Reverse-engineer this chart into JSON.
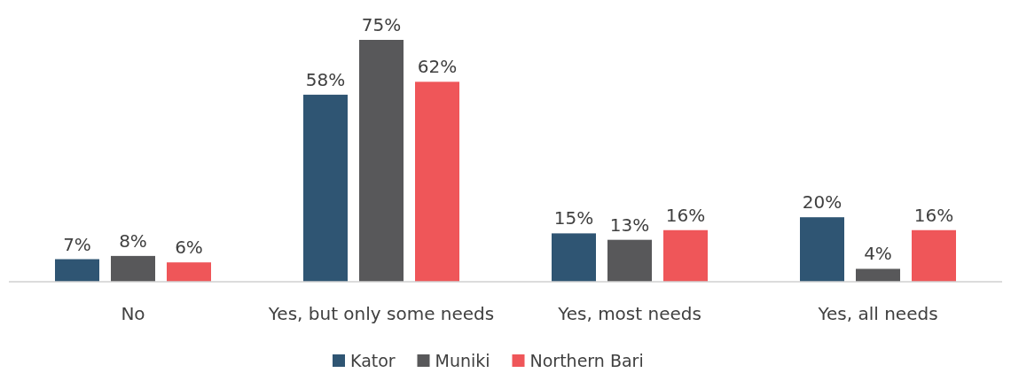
{
  "chart_data": {
    "type": "bar",
    "categories": [
      "No",
      "Yes, but only some needs",
      "Yes, most needs",
      "Yes, all needs"
    ],
    "series": [
      {
        "name": "Kator",
        "color": "#2f5573",
        "values": [
          7,
          58,
          15,
          20
        ],
        "value_labels": [
          "7%",
          "58%",
          "15%",
          "20%"
        ]
      },
      {
        "name": "Muniki",
        "color": "#58585a",
        "values": [
          8,
          75,
          13,
          4
        ],
        "value_labels": [
          "8%",
          "75%",
          "13%",
          "4%"
        ]
      },
      {
        "name": "Northern Bari",
        "color": "#ef5659",
        "values": [
          6,
          62,
          16,
          16
        ],
        "value_labels": [
          "6%",
          "62%",
          "16%",
          "16%"
        ]
      }
    ],
    "legend": "bottom"
  }
}
